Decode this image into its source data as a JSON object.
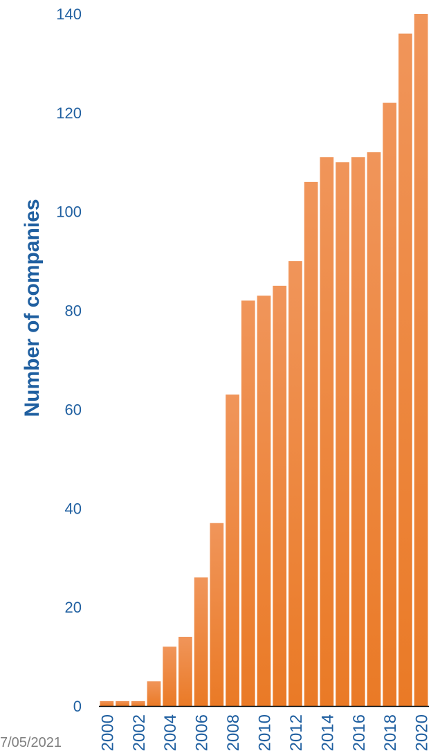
{
  "colors": {
    "axis_text": "#1f5fa0",
    "bar_top": "#f0955a",
    "bar_bottom": "#ea7a26",
    "baseline": "#000000"
  },
  "footer": {
    "date_text": "7/05/2021"
  },
  "chart_data": {
    "type": "bar",
    "title": "",
    "xlabel": "",
    "ylabel": "Number of companies",
    "ylim": [
      0,
      140
    ],
    "yticks": [
      0,
      20,
      40,
      60,
      80,
      100,
      120,
      140
    ],
    "grid": false,
    "categories": [
      "2000",
      "2001",
      "2002",
      "2003",
      "2004",
      "2005",
      "2006",
      "2007",
      "2008",
      "2009",
      "2010",
      "2011",
      "2012",
      "2013",
      "2014",
      "2015",
      "2016",
      "2017",
      "2018",
      "2019",
      "2020"
    ],
    "tick_labels_shown": [
      "2000",
      "2002",
      "2004",
      "2006",
      "2008",
      "2010",
      "2012",
      "2014",
      "2016",
      "2018",
      "2020"
    ],
    "values": [
      1,
      1,
      1,
      5,
      12,
      14,
      26,
      37,
      63,
      82,
      83,
      85,
      90,
      106,
      111,
      110,
      111,
      112,
      122,
      136,
      140
    ]
  }
}
